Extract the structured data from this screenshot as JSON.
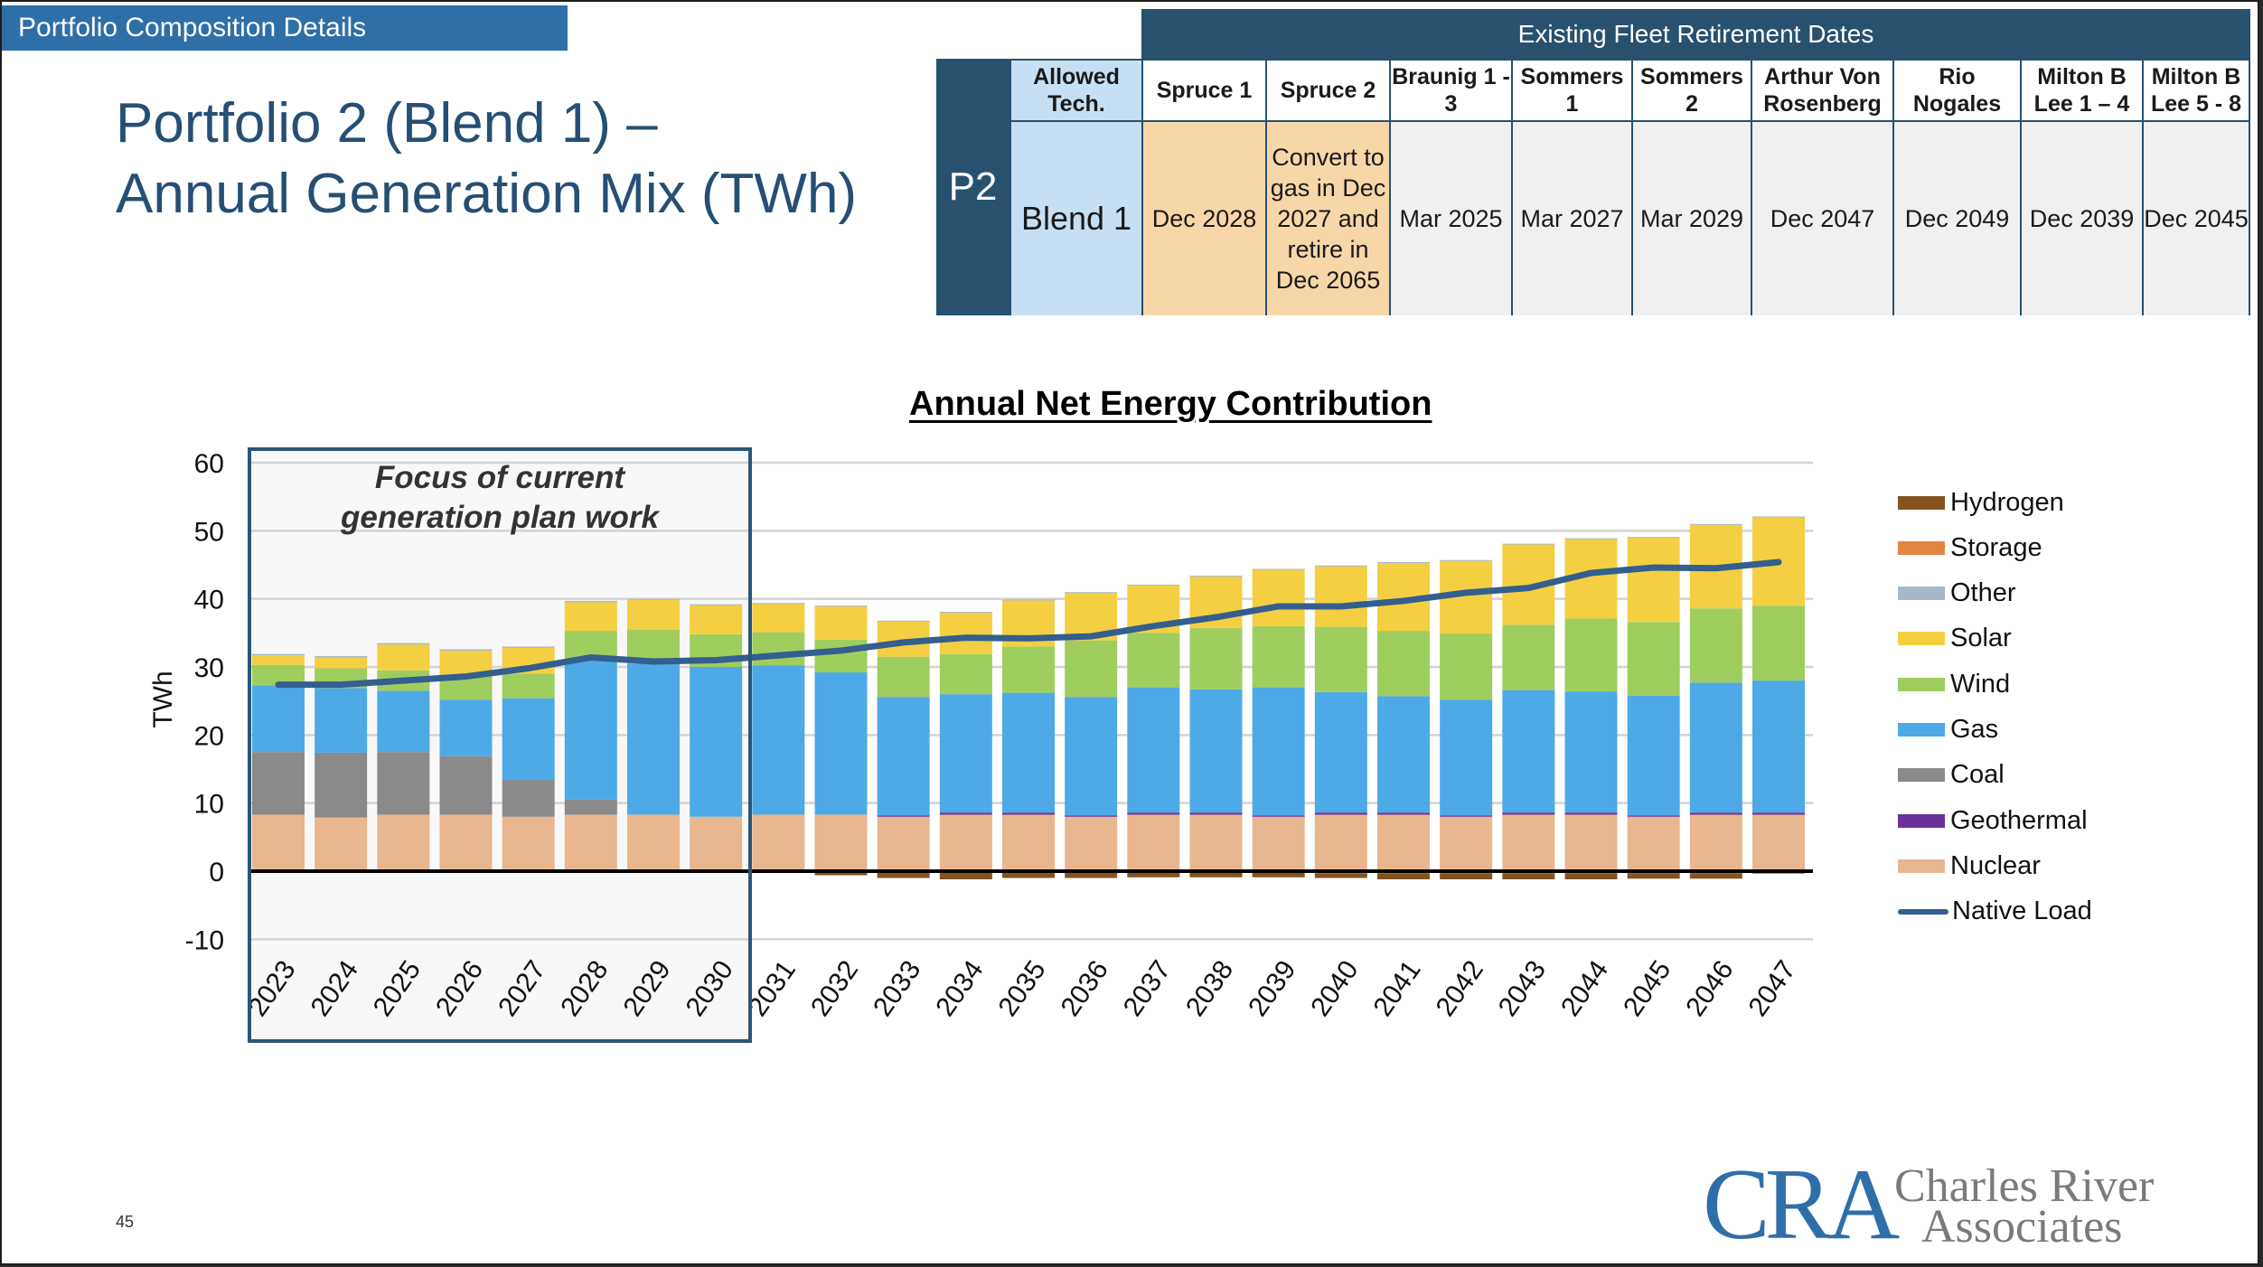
{
  "banner": "Portfolio Composition Details",
  "title": {
    "line1": "Portfolio 2 (Blend 1) –",
    "line2": "Annual Generation Mix (TWh)"
  },
  "table": {
    "group_header": "Existing Fleet Retirement Dates",
    "row_label": "P2",
    "columns": [
      {
        "header": "Allowed Tech.",
        "value": "Blend 1",
        "style": "allowed"
      },
      {
        "header": "Spruce 1",
        "value": "Dec 2028",
        "style": "orange"
      },
      {
        "header": "Spruce 2",
        "value": "Convert to gas in Dec 2027 and retire in Dec 2065",
        "style": "orange"
      },
      {
        "header": "Braunig 1 - 3",
        "value": "Mar 2025",
        "style": "grey"
      },
      {
        "header": "Sommers 1",
        "value": "Mar 2027",
        "style": "grey"
      },
      {
        "header": "Sommers 2",
        "value": "Mar 2029",
        "style": "grey"
      },
      {
        "header": "Arthur Von Rosenberg",
        "value": "Dec 2047",
        "style": "grey"
      },
      {
        "header": "Rio Nogales",
        "value": "Dec 2049",
        "style": "grey"
      },
      {
        "header": "Milton B Lee 1 – 4",
        "value": "Dec 2039",
        "style": "grey"
      },
      {
        "header": "Milton B Lee 5 - 8",
        "value": "Dec 2045",
        "style": "grey"
      }
    ]
  },
  "annotation": {
    "focus_box_label": "Focus of current generation plan work",
    "focus_years": [
      "2023",
      "2030"
    ]
  },
  "chart_data": {
    "type": "bar",
    "stacked": true,
    "title": "Annual Net Energy Contribution",
    "xlabel": "",
    "ylabel": "TWh",
    "ylim": [
      -10,
      60
    ],
    "yticks": [
      -10,
      0,
      10,
      20,
      30,
      40,
      50,
      60
    ],
    "grid": true,
    "legend_position": "right",
    "categories": [
      "2023",
      "2024",
      "2025",
      "2026",
      "2027",
      "2028",
      "2029",
      "2030",
      "2031",
      "2032",
      "2033",
      "2034",
      "2035",
      "2036",
      "2037",
      "2038",
      "2039",
      "2040",
      "2041",
      "2042",
      "2043",
      "2044",
      "2045",
      "2046",
      "2047"
    ],
    "series": [
      {
        "name": "Nuclear",
        "color": "#e8b68f",
        "values": [
          8.3,
          7.9,
          8.3,
          8.3,
          8.0,
          8.3,
          8.3,
          8.0,
          8.3,
          8.3,
          8.0,
          8.3,
          8.3,
          8.0,
          8.3,
          8.3,
          8.0,
          8.3,
          8.3,
          8.0,
          8.3,
          8.3,
          8.0,
          8.3,
          8.3
        ]
      },
      {
        "name": "Geothermal",
        "color": "#6a3198",
        "values": [
          0,
          0,
          0,
          0,
          0,
          0,
          0,
          0,
          0,
          0,
          0.2,
          0.3,
          0.3,
          0.2,
          0.3,
          0.3,
          0.2,
          0.3,
          0.3,
          0.2,
          0.3,
          0.3,
          0.2,
          0.3,
          0.3
        ]
      },
      {
        "name": "Coal",
        "color": "#8a8a8a",
        "values": [
          9.2,
          9.5,
          9.2,
          8.6,
          5.4,
          2.2,
          0,
          0,
          0,
          0,
          0,
          0,
          0,
          0,
          0,
          0,
          0,
          0,
          0,
          0,
          0,
          0,
          0,
          0,
          0
        ]
      },
      {
        "name": "Gas",
        "color": "#4daae6",
        "values": [
          9.8,
          9.5,
          9.0,
          8.3,
          12.0,
          20.6,
          22.2,
          22.0,
          21.9,
          20.9,
          17.4,
          17.4,
          17.6,
          17.4,
          18.4,
          18.1,
          18.8,
          17.7,
          17.1,
          17.0,
          18.0,
          17.8,
          17.6,
          19.1,
          19.4
        ]
      },
      {
        "name": "Wind",
        "color": "#9fcd5e",
        "values": [
          3.0,
          2.9,
          3.0,
          3.7,
          3.6,
          4.2,
          5.0,
          4.8,
          4.9,
          4.8,
          5.9,
          5.9,
          6.8,
          8.3,
          8.0,
          9.0,
          9.0,
          9.6,
          9.6,
          9.7,
          9.6,
          10.7,
          10.8,
          10.9,
          11.0
        ]
      },
      {
        "name": "Solar",
        "color": "#f5cf42",
        "values": [
          1.4,
          1.6,
          3.8,
          3.5,
          3.8,
          4.2,
          4.4,
          4.3,
          4.2,
          4.9,
          5.2,
          6.1,
          6.8,
          7.0,
          7.0,
          7.6,
          8.3,
          8.9,
          10.0,
          10.7,
          11.8,
          11.7,
          12.4,
          12.3,
          13.0
        ]
      },
      {
        "name": "Other",
        "color": "#a7b8c8",
        "values": [
          0.2,
          0.2,
          0.2,
          0.2,
          0.2,
          0.2,
          0.1,
          0.1,
          0.1,
          0.1,
          0.1,
          0.1,
          0.1,
          0.1,
          0.1,
          0.1,
          0.1,
          0.1,
          0.1,
          0.1,
          0.1,
          0.1,
          0.1,
          0.1,
          0.1
        ]
      },
      {
        "name": "Storage",
        "color": "#e38540",
        "values": [
          0,
          0,
          0,
          0,
          0,
          0,
          0,
          0,
          -0.2,
          -0.2,
          -0.1,
          -0.1,
          -0.1,
          -0.1,
          -0.1,
          -0.1,
          -0.2,
          -0.3,
          -0.3,
          -0.3,
          -0.3,
          -0.3,
          -0.3,
          -0.3,
          -0.4
        ]
      },
      {
        "name": "Hydrogen",
        "color": "#85531e",
        "values": [
          0,
          0,
          0,
          0,
          0,
          0,
          0,
          0,
          0,
          -0.4,
          -0.9,
          -1.1,
          -0.9,
          -0.9,
          -0.8,
          -0.8,
          -0.7,
          -0.7,
          -0.9,
          -0.9,
          -0.9,
          -0.9,
          -0.8,
          -0.8,
          0
        ]
      }
    ],
    "line_series": {
      "name": "Native Load",
      "color": "#335f8f",
      "values": [
        27.4,
        27.4,
        28.0,
        28.6,
        29.8,
        31.4,
        30.8,
        31.0,
        31.7,
        32.4,
        33.6,
        34.3,
        34.2,
        34.5,
        36.0,
        37.3,
        38.9,
        38.9,
        39.7,
        40.9,
        41.6,
        43.8,
        44.6,
        44.5,
        45.4
      ]
    },
    "legend": [
      "Hydrogen",
      "Storage",
      "Other",
      "Solar",
      "Wind",
      "Gas",
      "Coal",
      "Geothermal",
      "Nuclear",
      "Native Load"
    ]
  },
  "footer": {
    "page_number": "45",
    "logo_mark": "CRA",
    "logo_line1": "Charles River",
    "logo_line2": "Associates"
  }
}
